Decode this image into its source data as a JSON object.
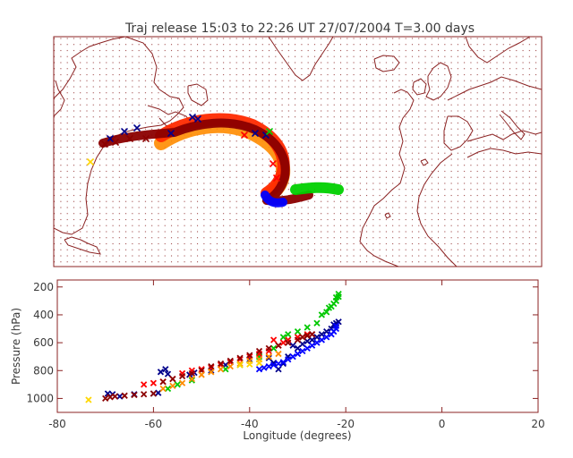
{
  "title": "Traj release 15:03 to 22:26 UT 27/07/2004    T=3.00 days",
  "colors": {
    "frame": "#8b2323",
    "text": "#3a3a3a",
    "coast": "#8b2323",
    "grid_dots": "#8b2323"
  },
  "map_panel": {
    "lon_range": [
      -100,
      20
    ],
    "lat_range": [
      10,
      70
    ],
    "background": "dotted grid",
    "coastlines": "North America, Greenland, Europe, North Africa"
  },
  "chart_data": {
    "type": "scatter",
    "title": "",
    "xlabel": "Longitude  (degrees)",
    "ylabel": "Pressure  (hPa)",
    "xlim": [
      -80,
      20
    ],
    "ylim": [
      1100,
      150
    ],
    "xticks": [
      -80,
      -60,
      -40,
      -20,
      0,
      20
    ],
    "yticks": [
      200,
      400,
      600,
      800,
      1000
    ],
    "grid": false,
    "series": [
      {
        "color": "#00008b",
        "points": [
          [
            -69.5,
            965
          ],
          [
            -68.5,
            970
          ],
          [
            -67,
            985
          ],
          [
            -64,
            970
          ],
          [
            -60,
            965
          ],
          [
            -59,
            960
          ],
          [
            -58.5,
            810
          ],
          [
            -57.5,
            790
          ],
          [
            -57,
            825
          ],
          [
            -52.5,
            830
          ],
          [
            -51.5,
            815
          ],
          [
            -48,
            800
          ],
          [
            -45,
            760
          ],
          [
            -44,
            740
          ],
          [
            -40,
            720
          ],
          [
            -36,
            710
          ],
          [
            -35,
            745
          ],
          [
            -34,
            790
          ],
          [
            -33,
            750
          ],
          [
            -32,
            700
          ],
          [
            -31,
            620
          ],
          [
            -30,
            640
          ],
          [
            -29,
            610
          ],
          [
            -28,
            590
          ],
          [
            -27,
            580
          ],
          [
            -26,
            560
          ],
          [
            -25,
            540
          ],
          [
            -24,
            520
          ],
          [
            -23,
            500
          ],
          [
            -22.5,
            470
          ],
          [
            -22,
            460
          ],
          [
            -21.5,
            450
          ]
        ]
      },
      {
        "color": "#0000ff",
        "points": [
          [
            -38,
            790
          ],
          [
            -37,
            780
          ],
          [
            -36,
            770
          ],
          [
            -35,
            760
          ],
          [
            -34,
            750
          ],
          [
            -33,
            740
          ],
          [
            -32,
            720
          ],
          [
            -31,
            700
          ],
          [
            -30,
            680
          ],
          [
            -29,
            660
          ],
          [
            -28,
            640
          ],
          [
            -27,
            620
          ],
          [
            -26,
            600
          ],
          [
            -25,
            580
          ],
          [
            -24,
            560
          ],
          [
            -23,
            540
          ],
          [
            -22.5,
            520
          ],
          [
            -22,
            500
          ],
          [
            -22,
            480
          ]
        ]
      },
      {
        "color": "#00c800",
        "points": [
          [
            -57,
            930
          ],
          [
            -55,
            900
          ],
          [
            -52,
            870
          ],
          [
            -45,
            790
          ],
          [
            -42,
            760
          ],
          [
            -38,
            700
          ],
          [
            -35,
            640
          ],
          [
            -33,
            560
          ],
          [
            -32,
            540
          ],
          [
            -30,
            520
          ],
          [
            -28,
            490
          ],
          [
            -26,
            460
          ],
          [
            -25,
            400
          ],
          [
            -24,
            380
          ],
          [
            -23.5,
            350
          ],
          [
            -23,
            340
          ],
          [
            -22.5,
            320
          ],
          [
            -22,
            300
          ],
          [
            -22,
            275
          ],
          [
            -21.5,
            270
          ],
          [
            -21.5,
            250
          ]
        ]
      },
      {
        "color": "#ff0000",
        "points": [
          [
            -62,
            900
          ],
          [
            -60,
            890
          ],
          [
            -58,
            880
          ],
          [
            -56,
            860
          ],
          [
            -54,
            820
          ],
          [
            -52,
            800
          ],
          [
            -50,
            790
          ],
          [
            -48,
            780
          ],
          [
            -46,
            760
          ],
          [
            -44,
            740
          ],
          [
            -42,
            720
          ],
          [
            -40,
            700
          ],
          [
            -38,
            680
          ],
          [
            -36,
            660
          ],
          [
            -35,
            580
          ],
          [
            -34,
            620
          ],
          [
            -33,
            600
          ],
          [
            -32,
            580
          ],
          [
            -30,
            560
          ],
          [
            -29,
            560
          ],
          [
            -28,
            540
          ],
          [
            -27,
            540
          ]
        ]
      },
      {
        "color": "#8b0000",
        "points": [
          [
            -70,
            1000
          ],
          [
            -69,
            990
          ],
          [
            -68,
            985
          ],
          [
            -66,
            980
          ],
          [
            -64,
            975
          ],
          [
            -62,
            970
          ],
          [
            -60,
            965
          ],
          [
            -58,
            880
          ],
          [
            -56,
            860
          ],
          [
            -54,
            840
          ],
          [
            -52,
            820
          ],
          [
            -50,
            800
          ],
          [
            -48,
            770
          ],
          [
            -46,
            750
          ],
          [
            -44,
            730
          ],
          [
            -42,
            710
          ],
          [
            -40,
            690
          ],
          [
            -38,
            660
          ],
          [
            -36,
            640
          ],
          [
            -34,
            620
          ],
          [
            -32,
            600
          ],
          [
            -30,
            580
          ],
          [
            -29,
            560
          ],
          [
            -28,
            550
          ],
          [
            -27,
            540
          ]
        ]
      },
      {
        "color": "#ff8c00",
        "points": [
          [
            -58,
            930
          ],
          [
            -56,
            910
          ],
          [
            -54,
            890
          ],
          [
            -52,
            860
          ],
          [
            -50,
            830
          ],
          [
            -48,
            810
          ],
          [
            -46,
            790
          ],
          [
            -44,
            770
          ],
          [
            -42,
            750
          ],
          [
            -40,
            730
          ],
          [
            -38,
            720
          ],
          [
            -36,
            700
          ],
          [
            -34,
            680
          ]
        ]
      },
      {
        "color": "#ffd700",
        "points": [
          [
            -73.5,
            1010
          ],
          [
            -42,
            760
          ],
          [
            -40,
            755
          ],
          [
            -38,
            745
          ]
        ]
      }
    ]
  }
}
